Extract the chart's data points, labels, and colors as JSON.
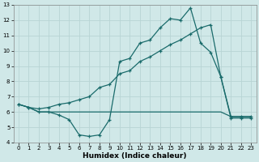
{
  "xlabel": "Humidex (Indice chaleur)",
  "bg_color": "#d0e8e8",
  "grid_color": "#b8d4d4",
  "line_color": "#1a6b6b",
  "xlim": [
    -0.5,
    23.5
  ],
  "ylim": [
    4,
    13
  ],
  "xticks": [
    0,
    1,
    2,
    3,
    4,
    5,
    6,
    7,
    8,
    9,
    10,
    11,
    12,
    13,
    14,
    15,
    16,
    17,
    18,
    19,
    20,
    21,
    22,
    23
  ],
  "yticks": [
    4,
    5,
    6,
    7,
    8,
    9,
    10,
    11,
    12,
    13
  ],
  "line1_x": [
    0,
    1,
    2,
    3,
    4,
    5,
    6,
    7,
    8,
    9,
    10,
    11,
    12,
    13,
    14,
    15,
    16,
    17,
    18,
    19,
    20,
    21,
    22,
    23
  ],
  "line1_y": [
    6.5,
    6.3,
    6.0,
    6.0,
    5.8,
    5.5,
    4.5,
    4.4,
    4.5,
    5.5,
    9.3,
    9.5,
    10.5,
    10.7,
    11.5,
    12.1,
    12.0,
    12.8,
    10.5,
    9.9,
    8.3,
    5.6,
    5.6,
    5.6
  ],
  "line2_x": [
    0,
    1,
    2,
    3,
    4,
    5,
    6,
    7,
    8,
    9,
    10,
    11,
    12,
    13,
    14,
    15,
    16,
    17,
    18,
    19,
    20,
    21,
    22,
    23
  ],
  "line2_y": [
    6.5,
    6.3,
    6.0,
    6.0,
    6.0,
    6.0,
    6.0,
    6.0,
    6.0,
    6.0,
    6.0,
    6.0,
    6.0,
    6.0,
    6.0,
    6.0,
    6.0,
    6.0,
    6.0,
    6.0,
    6.0,
    5.7,
    5.7,
    5.7
  ],
  "line3_x": [
    0,
    1,
    2,
    3,
    4,
    5,
    6,
    7,
    8,
    9,
    10,
    11,
    12,
    13,
    14,
    15,
    16,
    17,
    18,
    19,
    20,
    21,
    22,
    23
  ],
  "line3_y": [
    6.5,
    6.3,
    6.2,
    6.3,
    6.5,
    6.6,
    6.8,
    7.0,
    7.6,
    7.8,
    8.5,
    8.7,
    9.3,
    9.6,
    10.0,
    10.4,
    10.7,
    11.1,
    11.5,
    11.7,
    8.3,
    5.7,
    5.7,
    5.7
  ]
}
